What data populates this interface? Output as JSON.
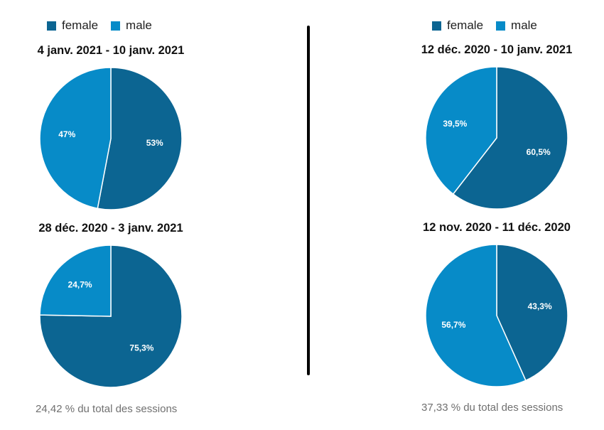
{
  "colors": {
    "female": "#0c6592",
    "male": "#078bc8",
    "label": "#ffffff",
    "divider": "#000000"
  },
  "legend": {
    "female": "female",
    "male": "male"
  },
  "left": {
    "footer": "24,42 % du total des sessions"
  },
  "right": {
    "footer": "37,33 % du total des sessions"
  },
  "chart_data": [
    {
      "type": "pie",
      "title": "4 janv. 2021 - 10 janv. 2021",
      "slices": [
        {
          "name": "female",
          "value": 53,
          "label": "53%"
        },
        {
          "name": "male",
          "value": 47,
          "label": "47%"
        }
      ]
    },
    {
      "type": "pie",
      "title": "28 déc. 2020 - 3 janv. 2021",
      "slices": [
        {
          "name": "female",
          "value": 75.3,
          "label": "75,3%"
        },
        {
          "name": "male",
          "value": 24.7,
          "label": "24,7%"
        }
      ]
    },
    {
      "type": "pie",
      "title": "12 déc. 2020 - 10 janv. 2021",
      "slices": [
        {
          "name": "female",
          "value": 60.5,
          "label": "60,5%"
        },
        {
          "name": "male",
          "value": 39.5,
          "label": "39,5%"
        }
      ]
    },
    {
      "type": "pie",
      "title": "12 nov. 2020 - 11 déc. 2020",
      "slices": [
        {
          "name": "female",
          "value": 43.3,
          "label": "43,3%"
        },
        {
          "name": "male",
          "value": 56.7,
          "label": "56,7%"
        }
      ]
    }
  ]
}
